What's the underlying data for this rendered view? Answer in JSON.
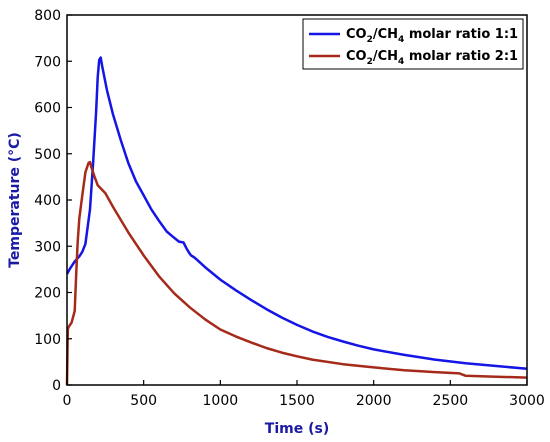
{
  "chart_data": {
    "type": "line",
    "xlabel": "Time (s)",
    "ylabel": "Temperature (°C)",
    "xlim": [
      0,
      3000
    ],
    "ylim": [
      0,
      800
    ],
    "x_ticks": [
      "0",
      "500",
      "1000",
      "1500",
      "2000",
      "2500",
      "3000"
    ],
    "y_ticks": [
      "0",
      "100",
      "200",
      "300",
      "400",
      "500",
      "600",
      "700",
      "800"
    ],
    "grid": false,
    "legend_position": "top-right",
    "series": [
      {
        "name": "CO2/CH4 molar ratio 1:1",
        "legend": {
          "pre": "CO",
          "sub1": "2",
          "mid": "/CH",
          "sub2": "4",
          "post": " molar ratio 1:1"
        },
        "color": "#1515e6",
        "x": [
          0,
          20,
          50,
          80,
          100,
          120,
          150,
          170,
          190,
          200,
          210,
          220,
          230,
          260,
          300,
          350,
          400,
          450,
          500,
          550,
          600,
          650,
          700,
          730,
          760,
          780,
          800,
          810,
          830,
          850,
          900,
          1000,
          1100,
          1200,
          1300,
          1400,
          1500,
          1600,
          1700,
          1800,
          1900,
          2000,
          2200,
          2400,
          2600,
          2800,
          3000
        ],
        "y": [
          240,
          252,
          267,
          278,
          288,
          305,
          380,
          480,
          590,
          665,
          703,
          708,
          688,
          638,
          585,
          530,
          480,
          440,
          410,
          380,
          355,
          332,
          318,
          310,
          308,
          295,
          284,
          280,
          276,
          270,
          255,
          228,
          205,
          184,
          164,
          146,
          130,
          116,
          104,
          94,
          85,
          77,
          65,
          55,
          47,
          41,
          35
        ]
      },
      {
        "name": "CO2/CH4 molar ratio 2:1",
        "legend": {
          "pre": "CO",
          "sub1": "2",
          "mid": "/CH",
          "sub2": "4",
          "post": " molar ratio 2:1"
        },
        "color": "#a52a1a",
        "x": [
          0,
          5,
          10,
          30,
          50,
          60,
          70,
          80,
          100,
          120,
          140,
          150,
          160,
          180,
          200,
          250,
          300,
          400,
          500,
          600,
          700,
          800,
          900,
          1000,
          1100,
          1200,
          1300,
          1400,
          1500,
          1600,
          1800,
          2000,
          2200,
          2400,
          2560,
          2600,
          2800,
          3000
        ],
        "y": [
          0,
          120,
          125,
          135,
          160,
          240,
          310,
          360,
          410,
          460,
          480,
          482,
          470,
          450,
          432,
          415,
          385,
          330,
          280,
          235,
          198,
          168,
          142,
          120,
          105,
          92,
          80,
          70,
          62,
          55,
          45,
          38,
          32,
          28,
          25,
          20,
          18,
          16
        ]
      }
    ]
  }
}
